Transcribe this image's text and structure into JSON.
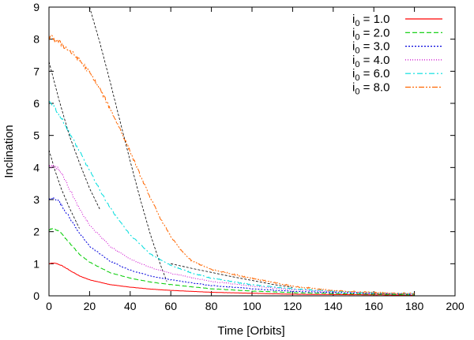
{
  "chart_data": {
    "type": "line",
    "xlabel": "Time [Orbits]",
    "ylabel": "Inclination",
    "xlim": [
      0,
      200
    ],
    "ylim": [
      0,
      9
    ],
    "xticks": [
      0,
      20,
      40,
      60,
      80,
      100,
      120,
      140,
      160,
      180,
      200
    ],
    "yticks": [
      0,
      1,
      2,
      3,
      4,
      5,
      6,
      7,
      8,
      9
    ],
    "grid": false,
    "legend_position": "top-right",
    "series": [
      {
        "name": "i",
        "name_subscript": "0",
        "name_suffix": " = 1.0",
        "color": "#ff0000",
        "dash": "solid",
        "noise": 0.01,
        "x": [
          0,
          2,
          4,
          6,
          8,
          10,
          15,
          20,
          30,
          40,
          50,
          60,
          80,
          100,
          120,
          140,
          160,
          180
        ],
        "y": [
          1.0,
          1.02,
          1.0,
          0.95,
          0.88,
          0.8,
          0.62,
          0.5,
          0.35,
          0.27,
          0.21,
          0.17,
          0.11,
          0.08,
          0.05,
          0.04,
          0.03,
          0.02
        ]
      },
      {
        "name": "i",
        "name_subscript": "0",
        "name_suffix": " = 2.0",
        "color": "#00cc00",
        "dash": "6,3",
        "noise": 0.02,
        "x": [
          0,
          2,
          4,
          6,
          8,
          10,
          15,
          20,
          30,
          40,
          50,
          60,
          80,
          100,
          120,
          140,
          160,
          180
        ],
        "y": [
          2.05,
          2.1,
          2.05,
          1.95,
          1.8,
          1.65,
          1.3,
          1.05,
          0.72,
          0.55,
          0.43,
          0.35,
          0.22,
          0.15,
          0.1,
          0.07,
          0.05,
          0.03
        ]
      },
      {
        "name": "i",
        "name_subscript": "0",
        "name_suffix": " = 3.0",
        "color": "#0000dd",
        "dash": "2,2",
        "noise": 0.04,
        "x": [
          0,
          2,
          4,
          6,
          8,
          10,
          15,
          20,
          30,
          40,
          50,
          60,
          80,
          100,
          120,
          140,
          160,
          180
        ],
        "y": [
          3.0,
          3.05,
          3.0,
          2.85,
          2.65,
          2.45,
          1.95,
          1.55,
          1.08,
          0.8,
          0.62,
          0.5,
          0.32,
          0.22,
          0.14,
          0.1,
          0.07,
          0.05
        ]
      },
      {
        "name": "i",
        "name_subscript": "0",
        "name_suffix": " = 4.0",
        "color": "#cc00cc",
        "dash": "1,2",
        "noise": 0.05,
        "x": [
          0,
          2,
          4,
          6,
          8,
          10,
          15,
          20,
          30,
          40,
          50,
          60,
          80,
          100,
          120,
          140,
          160,
          180
        ],
        "y": [
          4.0,
          4.05,
          4.0,
          3.85,
          3.6,
          3.35,
          2.7,
          2.2,
          1.55,
          1.15,
          0.88,
          0.7,
          0.45,
          0.3,
          0.19,
          0.13,
          0.09,
          0.06
        ]
      },
      {
        "name": "i",
        "name_subscript": "0",
        "name_suffix": " = 6.0",
        "color": "#00dddd",
        "dash": "7,3,2,3",
        "noise": 0.06,
        "x": [
          0,
          2,
          5,
          10,
          15,
          20,
          25,
          30,
          40,
          50,
          60,
          70,
          80,
          100,
          120,
          140,
          160,
          180
        ],
        "y": [
          6.05,
          5.95,
          5.65,
          5.1,
          4.5,
          3.9,
          3.3,
          2.75,
          1.9,
          1.3,
          0.95,
          0.72,
          0.55,
          0.34,
          0.22,
          0.14,
          0.09,
          0.06
        ]
      },
      {
        "name": "i",
        "name_subscript": "0",
        "name_suffix": " = 8.0",
        "color": "#ff6600",
        "dash": "7,2,2,2,2,2",
        "noise": 0.08,
        "x": [
          0,
          5,
          10,
          15,
          20,
          25,
          30,
          35,
          40,
          45,
          50,
          55,
          60,
          65,
          70,
          80,
          90,
          100,
          110,
          120,
          140,
          160,
          180
        ],
        "y": [
          8.1,
          7.9,
          7.65,
          7.35,
          6.95,
          6.45,
          5.85,
          5.2,
          4.5,
          3.75,
          3.05,
          2.4,
          1.85,
          1.42,
          1.1,
          0.82,
          0.68,
          0.55,
          0.42,
          0.3,
          0.16,
          0.1,
          0.07
        ]
      }
    ],
    "reference_curves": [
      {
        "color": "#000000",
        "dash": "3,2",
        "x": [
          20,
          25,
          30,
          35,
          40,
          45,
          50,
          55,
          58
        ],
        "y": [
          9.0,
          7.9,
          6.7,
          5.45,
          4.2,
          3.0,
          1.9,
          0.95,
          0.45
        ]
      },
      {
        "color": "#000000",
        "dash": "3,2",
        "x": [
          0,
          5,
          10,
          15,
          20,
          25
        ],
        "y": [
          7.3,
          6.1,
          5.0,
          4.15,
          3.35,
          2.7
        ]
      },
      {
        "color": "#000000",
        "dash": "3,2",
        "x": [
          0,
          3,
          6,
          10,
          15
        ],
        "y": [
          4.55,
          3.9,
          3.35,
          2.75,
          2.1
        ]
      },
      {
        "color": "#000000",
        "dash": "3,2",
        "x": [
          60,
          70,
          80,
          90,
          100,
          110,
          120
        ],
        "y": [
          1.0,
          0.86,
          0.73,
          0.6,
          0.48,
          0.36,
          0.26
        ]
      }
    ]
  }
}
